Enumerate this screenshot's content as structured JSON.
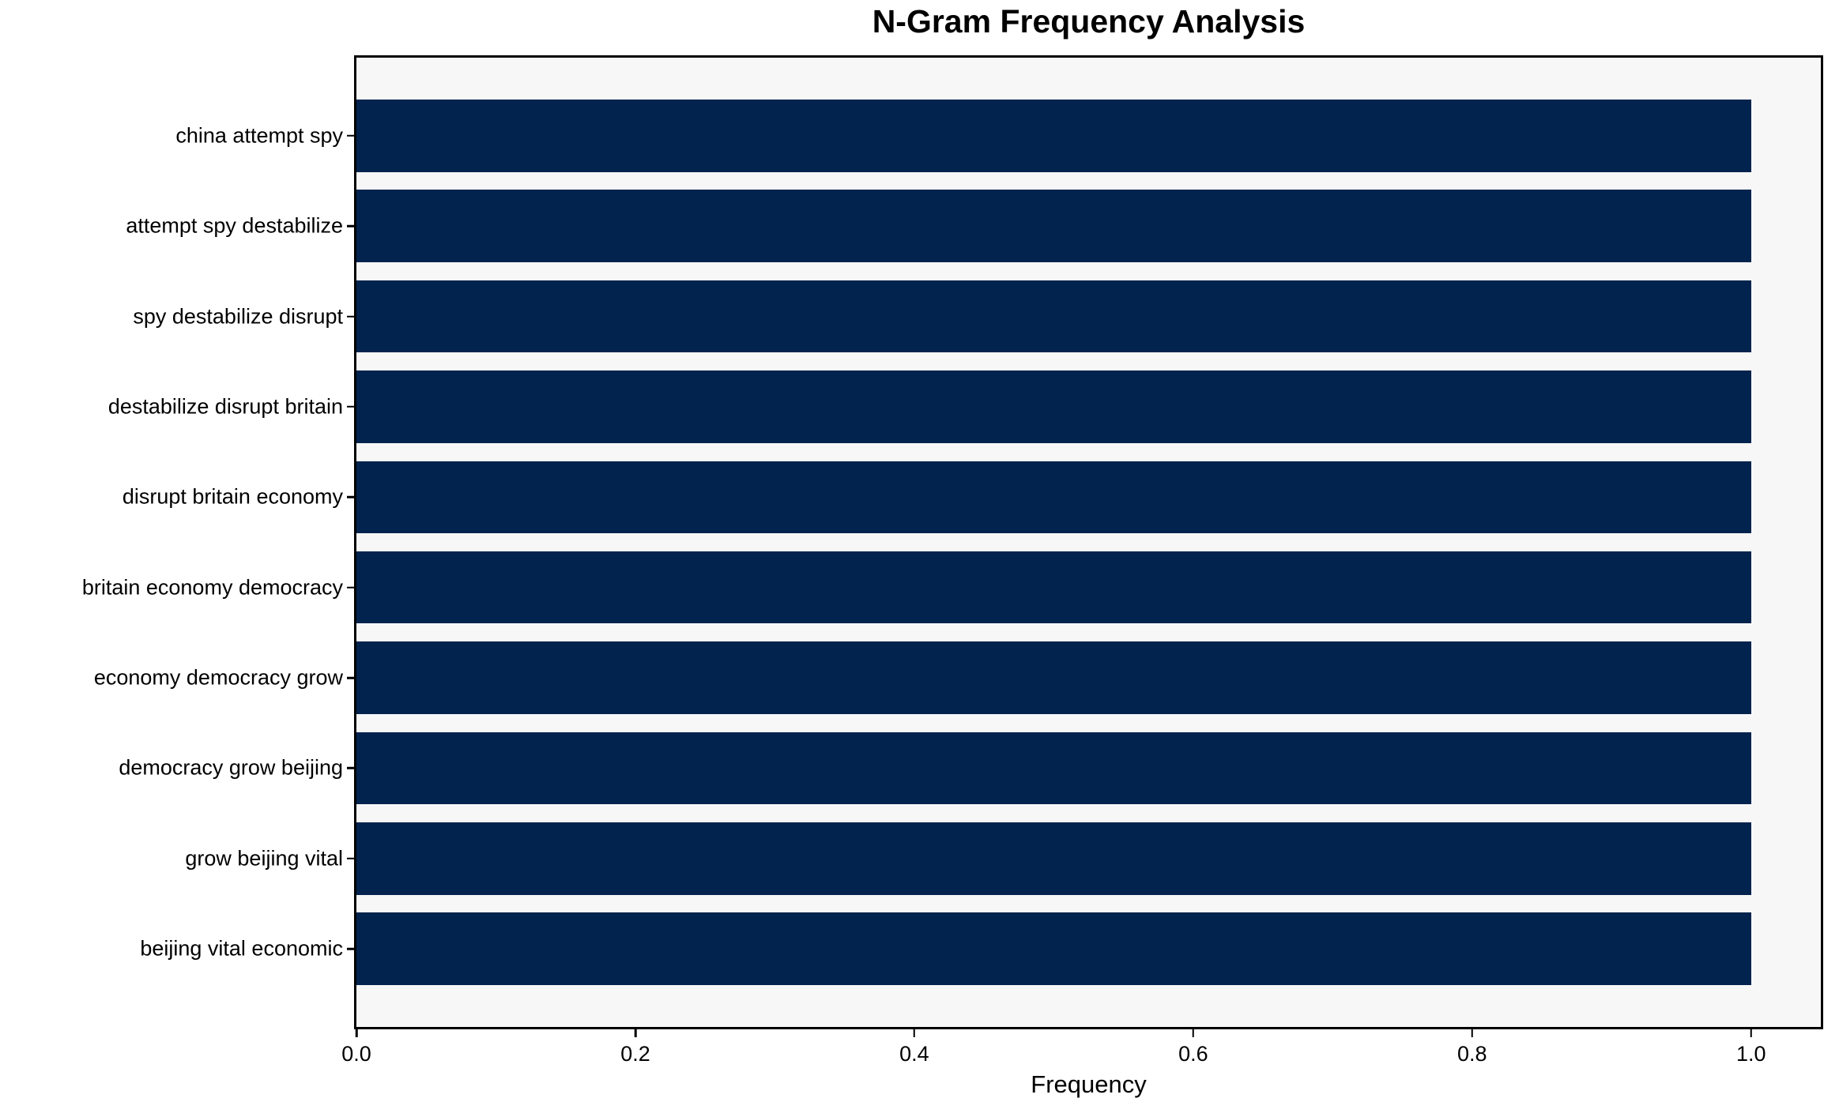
{
  "chart_data": {
    "type": "bar",
    "orientation": "horizontal",
    "title": "N-Gram Frequency Analysis",
    "xlabel": "Frequency",
    "ylabel": "",
    "categories": [
      "china attempt spy",
      "attempt spy destabilize",
      "spy destabilize disrupt",
      "destabilize disrupt britain",
      "disrupt britain economy",
      "britain economy democracy",
      "economy democracy grow",
      "democracy grow beijing",
      "grow beijing vital",
      "beijing vital economic"
    ],
    "values": [
      1.0,
      1.0,
      1.0,
      1.0,
      1.0,
      1.0,
      1.0,
      1.0,
      1.0,
      1.0
    ],
    "x_ticks": [
      "0.0",
      "0.2",
      "0.4",
      "0.6",
      "0.8",
      "1.0"
    ],
    "xlim": [
      0,
      1.05
    ],
    "grid": false,
    "legend": null,
    "colors": {
      "bar": "#02234d",
      "plot_background": "#f7f7f7",
      "figure_background": "#ffffff",
      "spine": "#000000",
      "text": "#000000"
    }
  }
}
